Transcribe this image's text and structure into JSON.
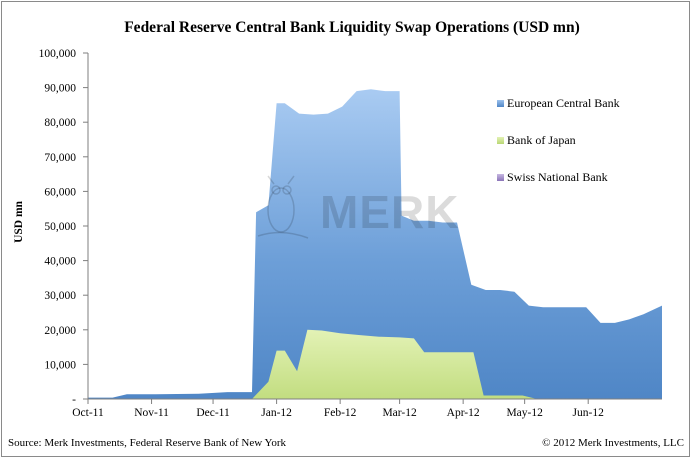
{
  "chart_data": {
    "type": "area",
    "title": "Federal Reserve Central Bank Liquidity Swap Operations (USD mn)",
    "ylabel": "USD mn",
    "xlabel": "",
    "ylim": [
      0,
      100000
    ],
    "y_ticks": [
      "-",
      "10,000",
      "20,000",
      "30,000",
      "40,000",
      "50,000",
      "60,000",
      "70,000",
      "80,000",
      "90,000",
      "100,000"
    ],
    "y_tick_values": [
      0,
      10000,
      20000,
      30000,
      40000,
      50000,
      60000,
      70000,
      80000,
      90000,
      100000
    ],
    "x_range": [
      "2011-10-01",
      "2012-07-07"
    ],
    "x_ticks": [
      {
        "label": "Oct-11",
        "date": "2011-10-01"
      },
      {
        "label": "Nov-11",
        "date": "2011-11-01"
      },
      {
        "label": "Dec-11",
        "date": "2011-12-01"
      },
      {
        "label": "Jan-12",
        "date": "2012-01-01"
      },
      {
        "label": "Feb-12",
        "date": "2012-02-01"
      },
      {
        "label": "Mar-12",
        "date": "2012-03-01"
      },
      {
        "label": "Apr-12",
        "date": "2012-04-01"
      },
      {
        "label": "May-12",
        "date": "2012-05-01"
      },
      {
        "label": "Jun-12",
        "date": "2012-06-01"
      }
    ],
    "legend_position": "right",
    "grid": false,
    "stacked": false,
    "series": [
      {
        "name": "European Central Bank",
        "color": "#4f86c6",
        "points": [
          [
            "2011-10-01",
            400
          ],
          [
            "2011-10-13",
            400
          ],
          [
            "2011-10-20",
            1400
          ],
          [
            "2011-11-03",
            1400
          ],
          [
            "2011-11-24",
            1500
          ],
          [
            "2011-12-08",
            2000
          ],
          [
            "2011-12-20",
            2000
          ],
          [
            "2011-12-22",
            54000
          ],
          [
            "2011-12-28",
            56000
          ],
          [
            "2012-01-01",
            85500
          ],
          [
            "2012-01-05",
            85500
          ],
          [
            "2012-01-12",
            82500
          ],
          [
            "2012-01-19",
            82200
          ],
          [
            "2012-01-26",
            82500
          ],
          [
            "2012-02-02",
            84500
          ],
          [
            "2012-02-09",
            89000
          ],
          [
            "2012-02-16",
            89500
          ],
          [
            "2012-02-23",
            89000
          ],
          [
            "2012-03-01",
            89000
          ],
          [
            "2012-03-02",
            53000
          ],
          [
            "2012-03-08",
            51500
          ],
          [
            "2012-03-15",
            51500
          ],
          [
            "2012-03-22",
            51000
          ],
          [
            "2012-03-29",
            51000
          ],
          [
            "2012-04-05",
            33000
          ],
          [
            "2012-04-12",
            31500
          ],
          [
            "2012-04-19",
            31500
          ],
          [
            "2012-04-26",
            31000
          ],
          [
            "2012-05-03",
            27000
          ],
          [
            "2012-05-10",
            26500
          ],
          [
            "2012-05-17",
            26500
          ],
          [
            "2012-05-24",
            26500
          ],
          [
            "2012-05-31",
            26500
          ],
          [
            "2012-06-07",
            22000
          ],
          [
            "2012-06-14",
            22000
          ],
          [
            "2012-06-21",
            23000
          ],
          [
            "2012-06-28",
            24500
          ],
          [
            "2012-07-07",
            27000
          ]
        ]
      },
      {
        "name": "Bank of Japan",
        "color": "#cfe693",
        "points": [
          [
            "2011-12-20",
            0
          ],
          [
            "2011-12-28",
            5000
          ],
          [
            "2012-01-01",
            14000
          ],
          [
            "2012-01-05",
            14000
          ],
          [
            "2012-01-11",
            8000
          ],
          [
            "2012-01-16",
            20000
          ],
          [
            "2012-01-23",
            19800
          ],
          [
            "2012-02-01",
            19000
          ],
          [
            "2012-02-10",
            18500
          ],
          [
            "2012-02-20",
            18000
          ],
          [
            "2012-03-01",
            17800
          ],
          [
            "2012-03-08",
            17500
          ],
          [
            "2012-03-13",
            13500
          ],
          [
            "2012-03-22",
            13500
          ],
          [
            "2012-04-01",
            13500
          ],
          [
            "2012-04-06",
            13500
          ],
          [
            "2012-04-11",
            1000
          ],
          [
            "2012-04-20",
            1000
          ],
          [
            "2012-04-30",
            1000
          ],
          [
            "2012-05-07",
            0
          ]
        ]
      },
      {
        "name": "Swiss National Bank",
        "color": "#9b85c3",
        "points": [
          [
            "2011-10-01",
            0
          ],
          [
            "2012-07-07",
            0
          ]
        ]
      }
    ]
  },
  "source_note": "Source: Merk Investments, Federal Reserve Bank of New York",
  "copyright_note": "© 2012 Merk Investments, LLC",
  "watermark": "MERK"
}
